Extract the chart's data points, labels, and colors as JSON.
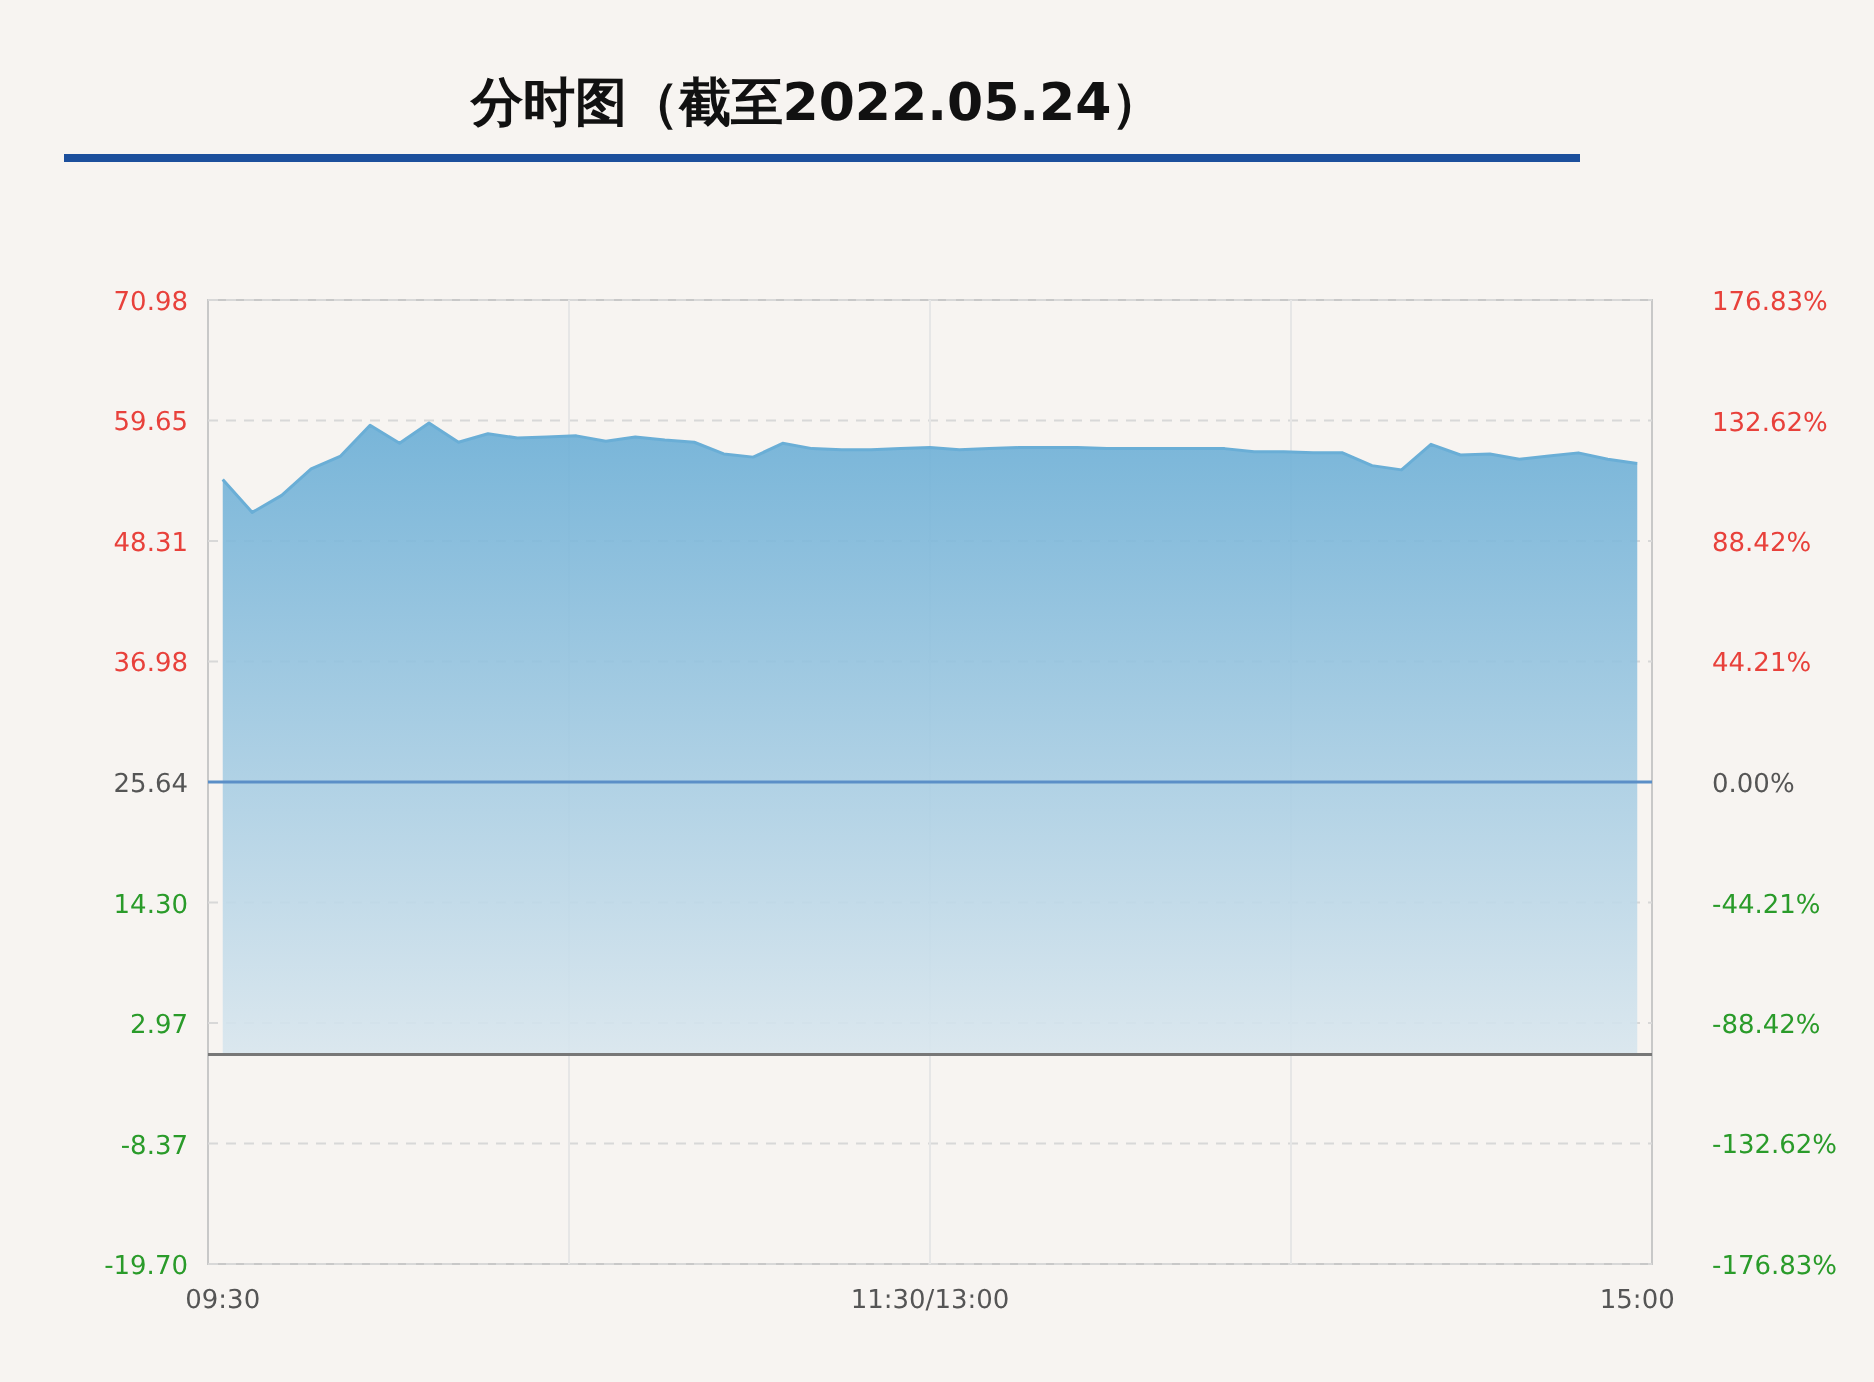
{
  "chart_data": {
    "type": "area",
    "title": "分时图（截至2022.05.24）",
    "color": "#6aaed6",
    "categories": [
      "09:30",
      null,
      null,
      null,
      null,
      null,
      null,
      null,
      null,
      null,
      null,
      null,
      null,
      null,
      null,
      null,
      null,
      null,
      null,
      null,
      null,
      null,
      null,
      null,
      "11:30/13:00",
      null,
      null,
      null,
      null,
      null,
      null,
      null,
      null,
      null,
      null,
      null,
      null,
      null,
      null,
      null,
      null,
      null,
      null,
      null,
      null,
      null,
      null,
      null,
      "15:00"
    ],
    "values": [
      54.1,
      51.0,
      52.6,
      55.1,
      56.3,
      59.2,
      57.5,
      59.4,
      57.6,
      58.4,
      58.0,
      58.1,
      58.2,
      57.7,
      58.1,
      57.8,
      57.6,
      56.5,
      56.2,
      57.5,
      57.0,
      56.9,
      56.9,
      57.0,
      57.1,
      56.9,
      57.0,
      57.1,
      57.1,
      57.1,
      57.0,
      57.0,
      57.0,
      57.0,
      57.0,
      56.7,
      56.7,
      56.6,
      56.6,
      55.4,
      55.0,
      57.4,
      56.4,
      56.5,
      56.0,
      56.3,
      56.6,
      56.0,
      55.6
    ],
    "ylim": [
      -19.7,
      70.98
    ],
    "yticks": [
      {
        "value": -19.7,
        "label": "-19.70"
      },
      -8.37,
      2.97,
      {
        "value": 14.3,
        "label": "14.30"
      },
      25.64,
      36.98,
      48.31,
      59.65,
      70.98
    ],
    "y2lim": [
      -176.83,
      176.83
    ],
    "y2ticks": [
      {
        "value": -176.83,
        "label": "-176.83%"
      },
      {
        "value": -132.62,
        "label": "-132.62%"
      },
      {
        "value": -88.42,
        "label": "-88.42%"
      },
      {
        "value": -44.21,
        "label": "-44.21%"
      },
      {
        "value": 0,
        "label": "0.00%"
      },
      {
        "value": 44.21,
        "label": "44.21%"
      },
      {
        "value": 88.42,
        "label": "88.42%"
      },
      {
        "value": 132.62,
        "label": "132.62%"
      },
      {
        "value": 176.83,
        "label": "176.83%"
      }
    ],
    "grid": true,
    "ref_lines": [
      {
        "axis": "y",
        "value": 25.64,
        "color": "#5b8fc7"
      },
      {
        "axis": "y",
        "value": 0,
        "color": "#777777"
      }
    ]
  }
}
